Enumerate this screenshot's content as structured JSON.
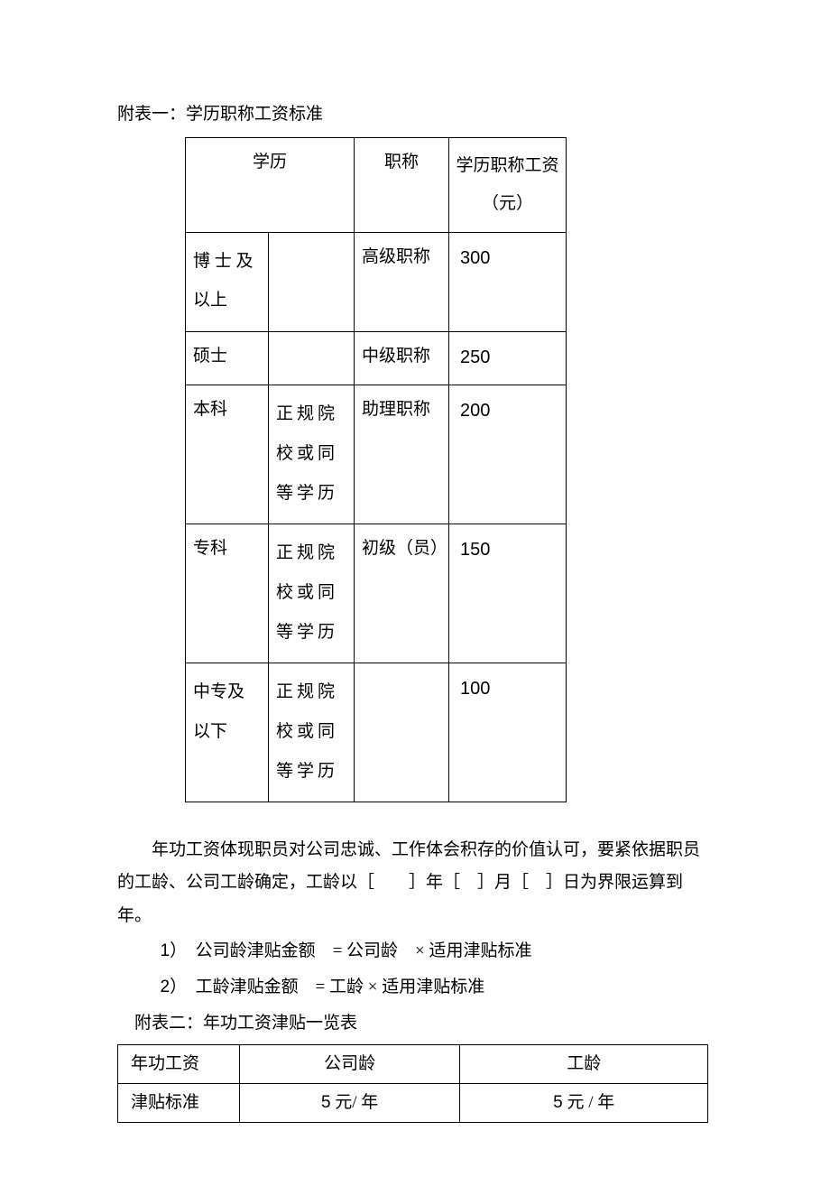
{
  "table1": {
    "title": "附表一：学历职称工资标准",
    "headers": {
      "education": "学历",
      "title": "职称",
      "salary": "学历职称工资（元）"
    },
    "rows": [
      {
        "edu1": "博 士 及以上",
        "edu2": "",
        "title": "高级职称",
        "salary": "300"
      },
      {
        "edu1": "硕士",
        "edu2": "",
        "title": "中级职称",
        "salary": "250"
      },
      {
        "edu1": "本科",
        "edu2": "正规院校或同等学历",
        "title": "助理职称",
        "salary": "200"
      },
      {
        "edu1": "专科",
        "edu2": "正规院校或同等学历",
        "title": "初级（员）",
        "salary": "150"
      },
      {
        "edu1": "中专及以下",
        "edu2": "正规院校或同等学历",
        "title": "",
        "salary": "100"
      }
    ]
  },
  "paragraph": {
    "text": "年功工资体现职员对公司忠诚、工作体会积存的价值认可，要紧依据职员的工龄、公司工龄确定，工龄以［　　］年［　］月［　］日为界限运算到年。"
  },
  "list": {
    "item1_num": "1",
    "item1_text": "）　公司龄津贴金额　= 公司龄　× 适用津贴标准",
    "item2_num": "2",
    "item2_text": "）　工龄津贴金额　= 工龄 × 适用津贴标准"
  },
  "table2": {
    "title": "附表二：年功工资津贴一览表",
    "headers": {
      "col1": "年功工资",
      "col2": "公司龄",
      "col3": "工龄"
    },
    "row": {
      "col1": "津贴标准",
      "col2_num": "5",
      "col2_text": " 元/ 年",
      "col3_num": "5",
      "col3_text": " 元 / 年"
    }
  },
  "colors": {
    "text": "#000000",
    "background": "#ffffff",
    "border": "#000000"
  }
}
